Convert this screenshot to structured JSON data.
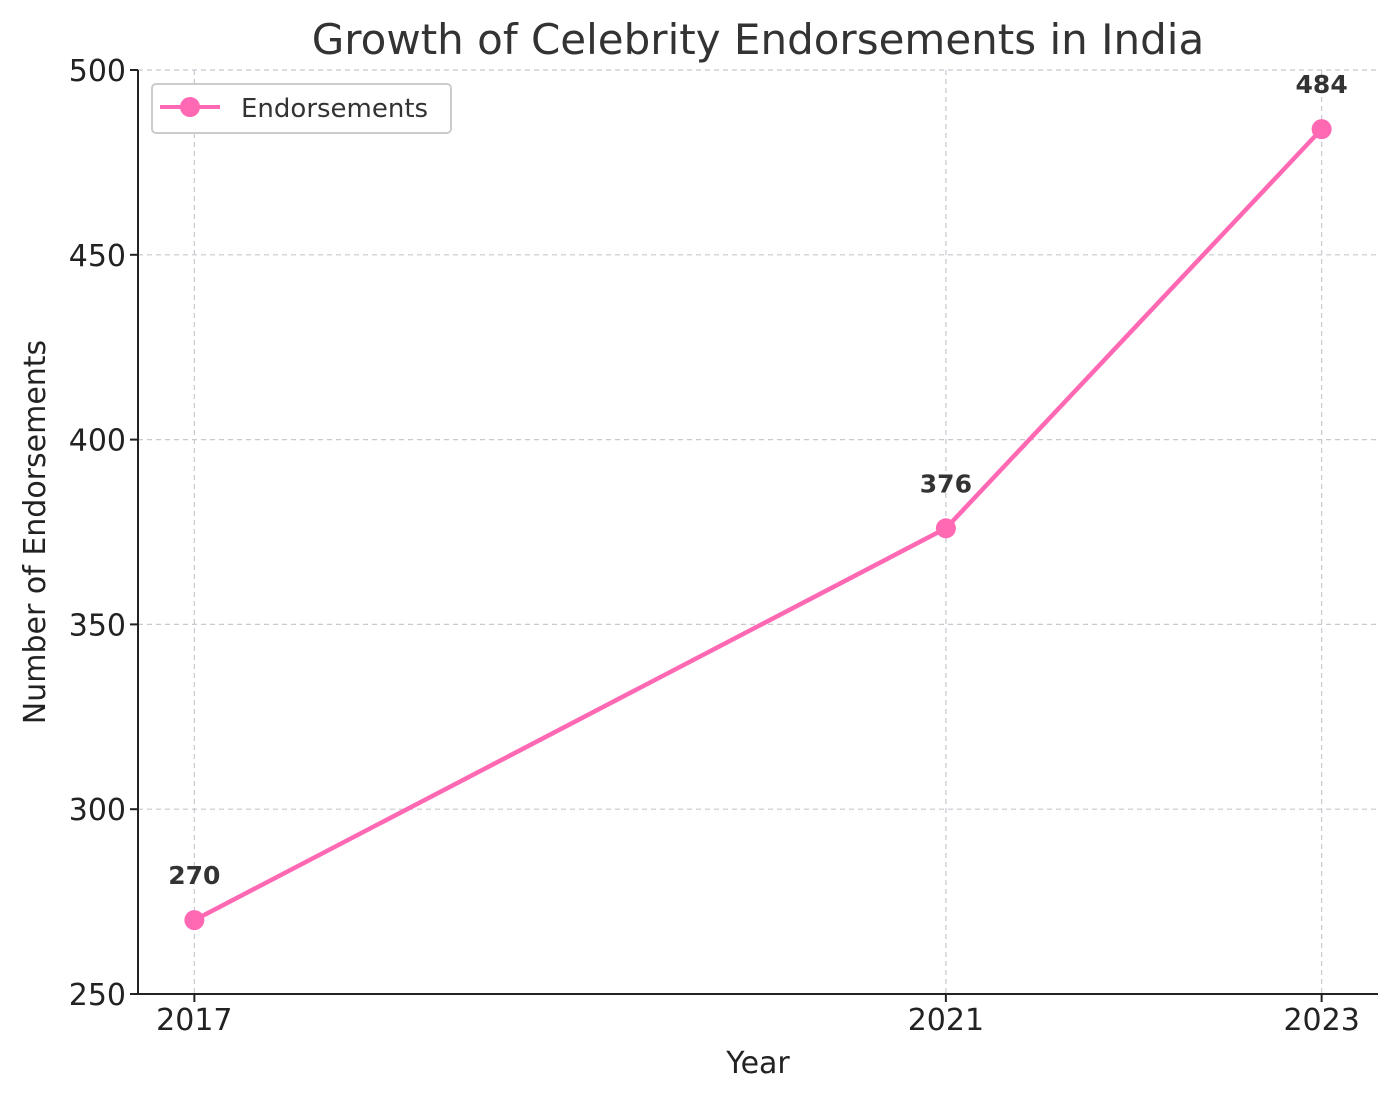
{
  "chart_data": {
    "type": "line",
    "title": "Growth of Celebrity Endorsements in India",
    "xlabel": "Year",
    "ylabel": "Number of Endorsements",
    "x": [
      2017,
      2021,
      2023
    ],
    "x_tick_labels": [
      "2017",
      "2021",
      "2023"
    ],
    "xlim": [
      2016.7,
      2023.3
    ],
    "ylim": [
      250,
      500
    ],
    "y_ticks": [
      250,
      300,
      350,
      400,
      450,
      500
    ],
    "grid": true,
    "legend_placement": "top-left",
    "series": [
      {
        "name": "Endorsements",
        "values": [
          270,
          376,
          484
        ],
        "color": "#ff69b4",
        "marker": "circle"
      }
    ],
    "data_labels": [
      "270",
      "376",
      "484"
    ]
  }
}
